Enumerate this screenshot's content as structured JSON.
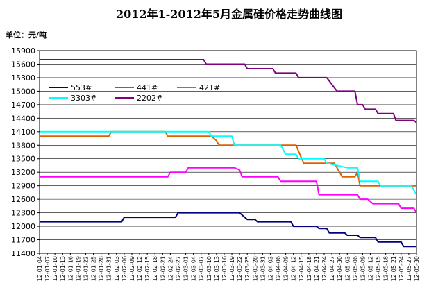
{
  "chart_data": {
    "type": "line",
    "title": "2012年1-2012年5月金属硅价格走势曲线图",
    "unit_label": "单位：元/吨",
    "ylim": [
      11400,
      15900
    ],
    "yticks": [
      11400,
      11700,
      12000,
      12300,
      12600,
      12900,
      13200,
      13500,
      13800,
      14100,
      14400,
      14700,
      15000,
      15300,
      15600,
      15900
    ],
    "grid": "horizontal",
    "legend_position": "top-left",
    "x_tick_labels": [
      "12-01-04",
      "12-01-07",
      "12-01-10",
      "12-01-13",
      "12-01-16",
      "12-01-19",
      "12-01-22",
      "12-01-25",
      "12-01-28",
      "12-01-31",
      "12-02-03",
      "12-02-06",
      "12-02-09",
      "12-02-12",
      "12-02-15",
      "12-02-18",
      "12-02-21",
      "12-02-24",
      "12-02-27",
      "12-03-01",
      "12-03-04",
      "12-03-07",
      "12-03-10",
      "12-03-13",
      "12-03-16",
      "12-03-19",
      "12-03-22",
      "12-03-25",
      "12-03-28",
      "12-03-31",
      "12-04-03",
      "12-04-06",
      "12-04-09",
      "12-04-12",
      "12-04-15",
      "12-04-18",
      "12-04-21",
      "12-04-24",
      "12-04-27",
      "12-04-30",
      "12-05-03",
      "12-05-06",
      "12-05-09",
      "12-05-12",
      "12-05-15",
      "12-05-18",
      "12-05-21",
      "12-05-24",
      "12-05-27",
      "12-05-30"
    ],
    "series": [
      {
        "name": "553#",
        "color": "#000080",
        "points": [
          [
            "2012-01-04",
            12100
          ],
          [
            "2012-02-05",
            12100
          ],
          [
            "2012-02-06",
            12200
          ],
          [
            "2012-02-26",
            12200
          ],
          [
            "2012-02-27",
            12300
          ],
          [
            "2012-03-22",
            12300
          ],
          [
            "2012-03-25",
            12150
          ],
          [
            "2012-03-28",
            12150
          ],
          [
            "2012-03-29",
            12100
          ],
          [
            "2012-04-11",
            12100
          ],
          [
            "2012-04-12",
            12000
          ],
          [
            "2012-04-21",
            12000
          ],
          [
            "2012-04-22",
            11950
          ],
          [
            "2012-04-25",
            11950
          ],
          [
            "2012-04-26",
            11850
          ],
          [
            "2012-05-02",
            11850
          ],
          [
            "2012-05-03",
            11800
          ],
          [
            "2012-05-07",
            11800
          ],
          [
            "2012-05-08",
            11750
          ],
          [
            "2012-05-14",
            11750
          ],
          [
            "2012-05-15",
            11650
          ],
          [
            "2012-05-24",
            11650
          ],
          [
            "2012-05-25",
            11550
          ],
          [
            "2012-05-30",
            11550
          ]
        ]
      },
      {
        "name": "441#",
        "color": "#FF00FF",
        "points": [
          [
            "2012-01-04",
            13100
          ],
          [
            "2012-02-23",
            13100
          ],
          [
            "2012-02-24",
            13200
          ],
          [
            "2012-03-01",
            13200
          ],
          [
            "2012-03-02",
            13300
          ],
          [
            "2012-03-20",
            13300
          ],
          [
            "2012-03-22",
            13250
          ],
          [
            "2012-03-23",
            13100
          ],
          [
            "2012-04-06",
            13100
          ],
          [
            "2012-04-07",
            13000
          ],
          [
            "2012-04-21",
            13000
          ],
          [
            "2012-04-22",
            12700
          ],
          [
            "2012-05-07",
            12700
          ],
          [
            "2012-05-08",
            12600
          ],
          [
            "2012-05-11",
            12600
          ],
          [
            "2012-05-13",
            12500
          ],
          [
            "2012-05-23",
            12500
          ],
          [
            "2012-05-24",
            12400
          ],
          [
            "2012-05-29",
            12400
          ],
          [
            "2012-05-30",
            12300
          ]
        ]
      },
      {
        "name": "421#",
        "color": "#E06000",
        "points": [
          [
            "2012-01-04",
            14000
          ],
          [
            "2012-01-31",
            14000
          ],
          [
            "2012-02-01",
            14100
          ],
          [
            "2012-02-22",
            14100
          ],
          [
            "2012-02-23",
            14000
          ],
          [
            "2012-03-11",
            14000
          ],
          [
            "2012-03-13",
            13900
          ],
          [
            "2012-03-14",
            13800
          ],
          [
            "2012-04-13",
            13800
          ],
          [
            "2012-04-16",
            13400
          ],
          [
            "2012-04-28",
            13400
          ],
          [
            "2012-04-30",
            13200
          ],
          [
            "2012-05-01",
            13100
          ],
          [
            "2012-05-06",
            13100
          ],
          [
            "2012-05-07",
            13200
          ],
          [
            "2012-05-08",
            12900
          ],
          [
            "2012-05-30",
            12900
          ]
        ]
      },
      {
        "name": "3303#",
        "color": "#00FFFF",
        "points": [
          [
            "2012-01-04",
            14100
          ],
          [
            "2012-03-10",
            14100
          ],
          [
            "2012-03-11",
            14000
          ],
          [
            "2012-03-19",
            14000
          ],
          [
            "2012-03-20",
            13800
          ],
          [
            "2012-04-07",
            13800
          ],
          [
            "2012-04-09",
            13600
          ],
          [
            "2012-04-13",
            13600
          ],
          [
            "2012-04-14",
            13500
          ],
          [
            "2012-04-24",
            13500
          ],
          [
            "2012-04-25",
            13400
          ],
          [
            "2012-05-03",
            13300
          ],
          [
            "2012-05-07",
            13300
          ],
          [
            "2012-05-08",
            13000
          ],
          [
            "2012-05-15",
            13000
          ],
          [
            "2012-05-16",
            12900
          ],
          [
            "2012-05-28",
            12900
          ],
          [
            "2012-05-30",
            12700
          ]
        ]
      },
      {
        "name": "2202#",
        "color": "#800080",
        "points": [
          [
            "2012-01-04",
            15700
          ],
          [
            "2012-03-08",
            15700
          ],
          [
            "2012-03-09",
            15600
          ],
          [
            "2012-03-24",
            15600
          ],
          [
            "2012-03-25",
            15500
          ],
          [
            "2012-04-04",
            15500
          ],
          [
            "2012-04-05",
            15400
          ],
          [
            "2012-04-13",
            15400
          ],
          [
            "2012-04-14",
            15300
          ],
          [
            "2012-04-25",
            15300
          ],
          [
            "2012-04-29",
            15000
          ],
          [
            "2012-05-06",
            15000
          ],
          [
            "2012-05-07",
            14700
          ],
          [
            "2012-05-09",
            14700
          ],
          [
            "2012-05-10",
            14600
          ],
          [
            "2012-05-14",
            14600
          ],
          [
            "2012-05-15",
            14500
          ],
          [
            "2012-05-21",
            14500
          ],
          [
            "2012-05-22",
            14350
          ],
          [
            "2012-05-29",
            14350
          ],
          [
            "2012-05-30",
            14300
          ]
        ]
      }
    ]
  }
}
